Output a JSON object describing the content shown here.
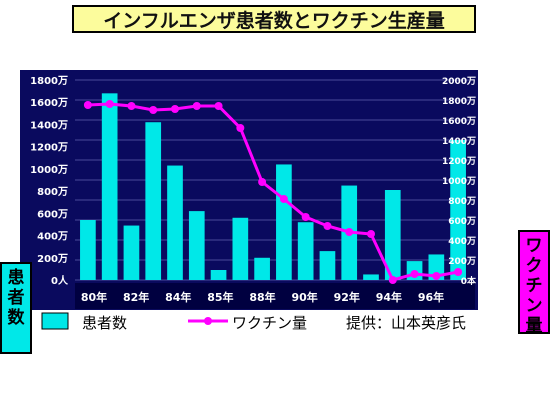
{
  "title": "インフルエンザ患者数とワクチン生産量",
  "left_side_label": "患者数",
  "right_side_label": "ワクチン量",
  "legend": {
    "patients": "患者数",
    "vaccine": "ワクチン量",
    "source": "提供：山本英彦氏"
  },
  "colors": {
    "plot_background": "#0a0a5e",
    "patients_bar": "#00e8e8",
    "vaccine_line": "#ff00ff",
    "title_background": "#fcfc9c"
  },
  "chart_data": {
    "type": "bar",
    "x_tick_labels": [
      "80年",
      "82年",
      "84年",
      "85年",
      "88年",
      "90年",
      "92年",
      "94年",
      "96年"
    ],
    "y_left_tick_labels": [
      "1800万",
      "1600万",
      "1400万",
      "1200万",
      "1000万",
      "800万",
      "600万",
      "400万",
      "200万",
      "0人"
    ],
    "y_right_tick_labels": [
      "2000万",
      "1800万",
      "1600万",
      "1400万",
      "1200万",
      "1000万",
      "800万",
      "600万",
      "400万",
      "200万",
      "0本"
    ],
    "y_left_range": [
      0,
      1800
    ],
    "y_right_range": [
      0,
      2000
    ],
    "grid": true,
    "legend_position": "bottom",
    "series": [
      {
        "name": "患者数",
        "kind": "bar",
        "axis": "left",
        "values": [
          540,
          1680,
          490,
          1420,
          1030,
          620,
          90,
          560,
          200,
          1040,
          520,
          260,
          850,
          50,
          810,
          170,
          230,
          1260
        ]
      },
      {
        "name": "ワクチン量",
        "kind": "line",
        "axis": "right",
        "values": [
          1750,
          1760,
          1740,
          1700,
          1710,
          1740,
          1740,
          1520,
          980,
          810,
          630,
          540,
          480,
          460,
          0,
          60,
          40,
          80
        ]
      }
    ]
  }
}
